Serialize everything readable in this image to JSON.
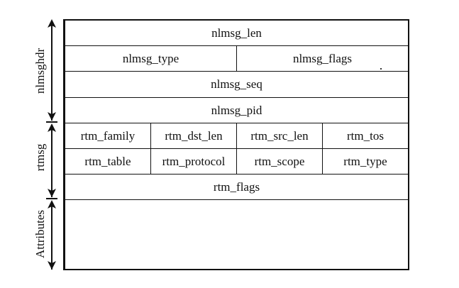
{
  "header_rows": [
    [
      "nlmsg_len"
    ],
    [
      "nlmsg_type",
      "nlmsg_flags"
    ],
    [
      "nlmsg_seq"
    ],
    [
      "nlmsg_pid"
    ]
  ],
  "rtmsg_rows": [
    [
      "rtm_family",
      "rtm_dst_len",
      "rtm_src_len",
      "rtm_tos"
    ],
    [
      "rtm_table",
      "rtm_protocol",
      "rtm_scope",
      "rtm_type"
    ],
    [
      "rtm_flags"
    ]
  ],
  "side_labels": {
    "nlmsghdr": "nlmsghdr",
    "rtmsg": "rtmsg",
    "attributes": "Attributes"
  }
}
